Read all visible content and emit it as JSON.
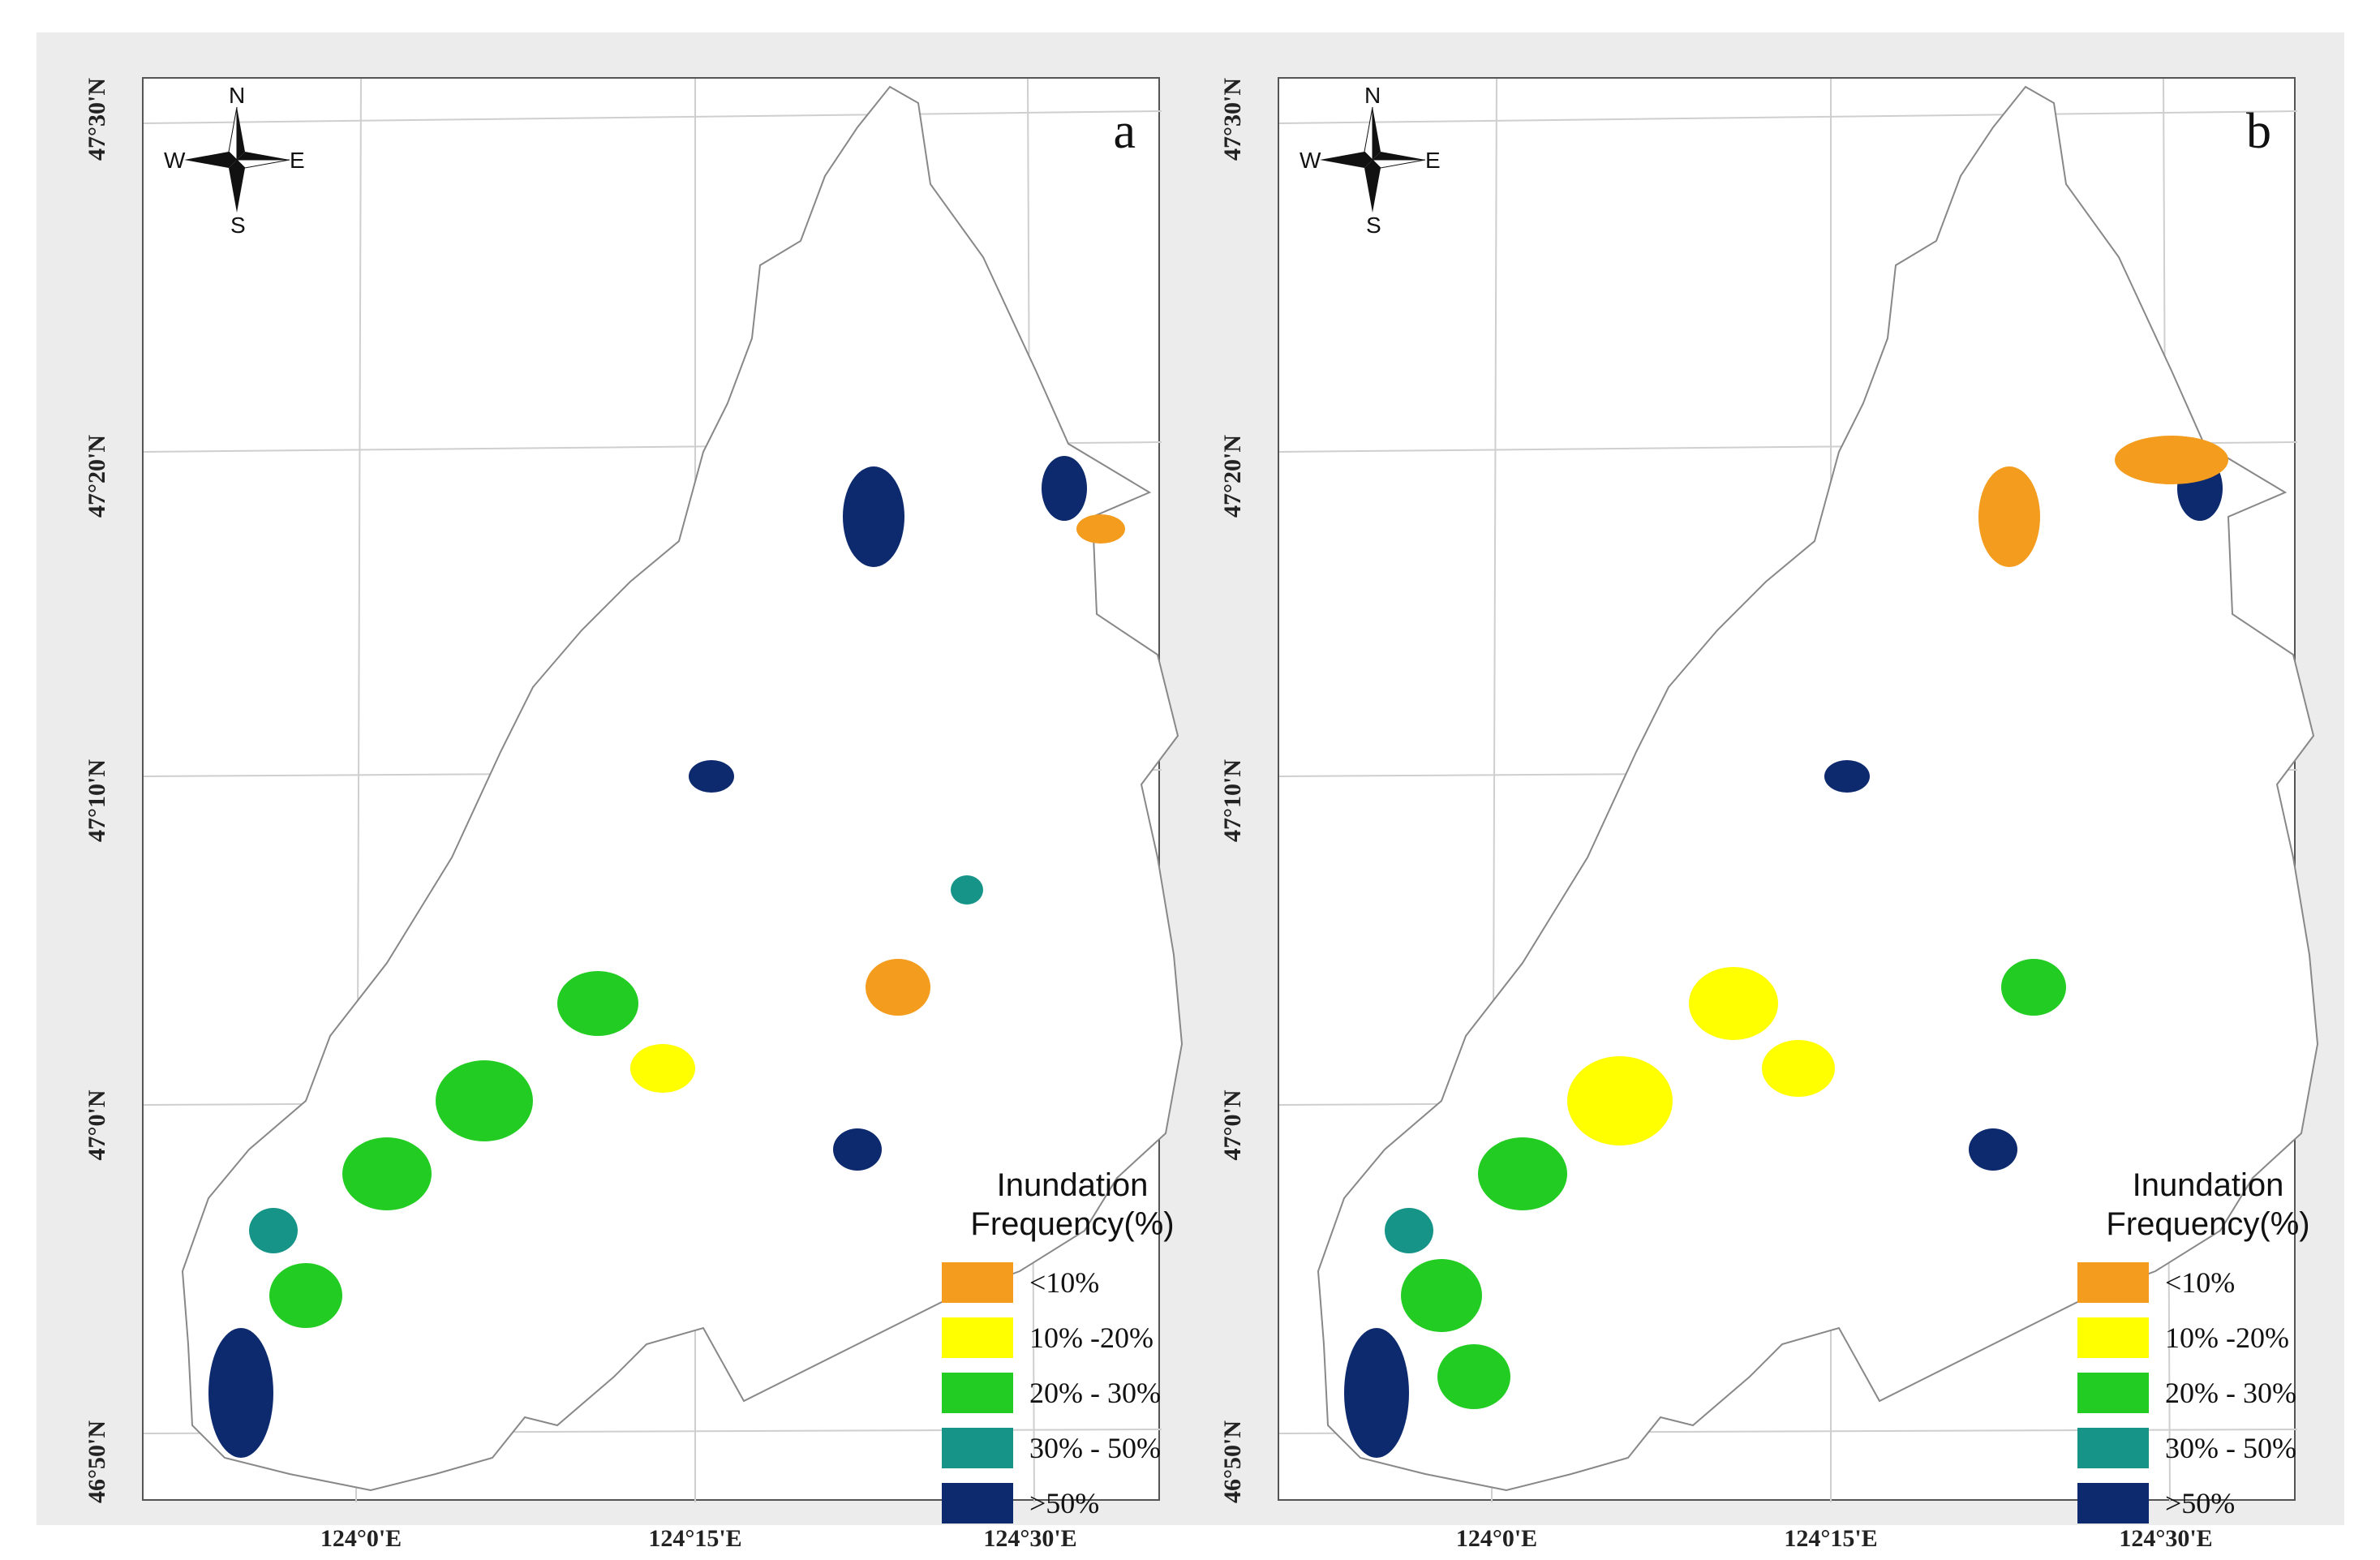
{
  "figure": {
    "panels": [
      {
        "id": "a",
        "letter": "a",
        "lat_labels": [
          "47°30'N",
          "47°20'N",
          "47°10'N",
          "47°0'N",
          "46°50'N"
        ],
        "lon_labels": [
          "124°0'E",
          "124°15'E",
          "124°30'E"
        ],
        "compass": {
          "n": "N",
          "s": "S",
          "e": "E",
          "w": "W"
        },
        "legend": {
          "title_line1": "Inundation",
          "title_line2": "Frequency(%)",
          "items": [
            {
              "label": "<10%",
              "color": "#f39c1e"
            },
            {
              "label": "10% -20%",
              "color": "#ffff00"
            },
            {
              "label": "20% - 30%",
              "color": "#22cc22"
            },
            {
              "label": "30% - 50%",
              "color": "#179488"
            },
            {
              "label": ">50%",
              "color": "#0d2a6e"
            }
          ]
        }
      },
      {
        "id": "b",
        "letter": "b",
        "lat_labels": [
          "47°30'N",
          "47°20'N",
          "47°10'N",
          "47°0'N",
          "46°50'N"
        ],
        "lon_labels": [
          "124°0'E",
          "124°15'E",
          "124°30'E"
        ],
        "compass": {
          "n": "N",
          "s": "S",
          "e": "E",
          "w": "W"
        },
        "legend": {
          "title_line1": "Inundation",
          "title_line2": "Frequency(%)",
          "items": [
            {
              "label": "<10%",
              "color": "#f39c1e"
            },
            {
              "label": "10% -20%",
              "color": "#ffff00"
            },
            {
              "label": "20% - 30%",
              "color": "#22cc22"
            },
            {
              "label": "30% - 50%",
              "color": "#179488"
            },
            {
              "label": ">50%",
              "color": "#0d2a6e"
            }
          ]
        }
      }
    ]
  }
}
